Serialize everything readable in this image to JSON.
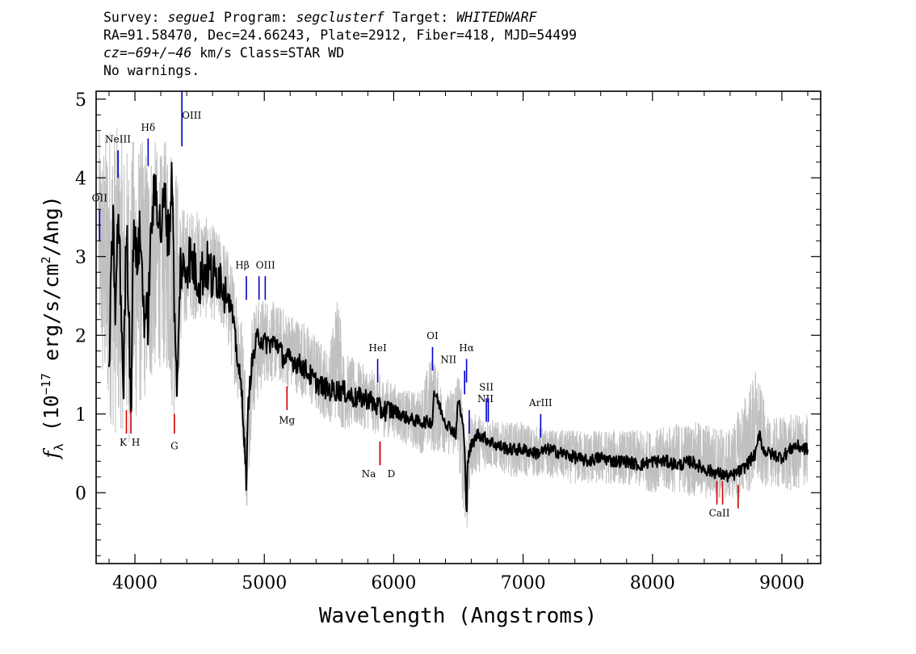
{
  "header": {
    "line1": {
      "survey_label": "Survey: ",
      "survey": "segue1",
      "program_label": " Program: ",
      "program": "segclusterf",
      "target_label": " Target: ",
      "target": "WHITEDWARF"
    },
    "line2": "RA=91.58470, Dec=24.66243, Plate=2912, Fiber=418, MJD=54499",
    "line3": {
      "cz": "cz=−69+/−46",
      "rest": " km/s Class=STAR WD"
    },
    "line4": "No warnings."
  },
  "colors": {
    "flux": "#000000",
    "error": "#c0c0c0",
    "emission": "#0000cc",
    "absorption": "#cc0000"
  },
  "chart_data": {
    "type": "line",
    "xlabel": "Wavelength (Angstroms)",
    "ylabel": "f_λ (10^-17 erg/s/cm^2/Ang)",
    "xlim": [
      3700,
      9300
    ],
    "ylim": [
      -0.9,
      5.1
    ],
    "x_ticks": [
      4000,
      5000,
      6000,
      7000,
      8000,
      9000
    ],
    "y_ticks": [
      0,
      1,
      2,
      3,
      4,
      5
    ],
    "grid": false,
    "series": [
      {
        "style": "smoothed flux (black)",
        "x": [
          3800,
          3830,
          3850,
          3870,
          3890,
          3910,
          3935,
          3950,
          3970,
          3990,
          4010,
          4040,
          4070,
          4100,
          4130,
          4160,
          4200,
          4230,
          4260,
          4290,
          4310,
          4330,
          4350,
          4380,
          4420,
          4500,
          4550,
          4600,
          4650,
          4700,
          4750,
          4800,
          4830,
          4850,
          4862,
          4875,
          4900,
          4950,
          5000,
          5050,
          5100,
          5150,
          5200,
          5300,
          5400,
          5500,
          5600,
          5700,
          5800,
          5900,
          6000,
          6100,
          6200,
          6300,
          6310,
          6400,
          6480,
          6500,
          6540,
          6555,
          6563,
          6570,
          6600,
          6650,
          6700,
          6800,
          6900,
          7000,
          7100,
          7200,
          7300,
          7400,
          7500,
          7600,
          7700,
          7800,
          7900,
          8000,
          8100,
          8200,
          8300,
          8400,
          8500,
          8600,
          8700,
          8800,
          8830,
          8850,
          8900,
          9000,
          9100,
          9200
        ],
        "y": [
          1.6,
          3.5,
          2.2,
          3.6,
          2.6,
          1.3,
          3.4,
          2.5,
          1.1,
          3.5,
          2.9,
          3.3,
          2.3,
          2.2,
          3.5,
          3.9,
          3.3,
          3.8,
          3.2,
          4.1,
          1.8,
          1.3,
          2.9,
          2.8,
          3.0,
          2.7,
          2.9,
          2.7,
          2.8,
          2.6,
          2.3,
          1.6,
          1.2,
          0.5,
          0.1,
          1.1,
          1.6,
          2.0,
          1.9,
          1.9,
          1.9,
          1.7,
          1.7,
          1.6,
          1.4,
          1.3,
          1.3,
          1.2,
          1.2,
          1.05,
          1.05,
          0.95,
          0.9,
          0.9,
          1.3,
          0.9,
          0.75,
          1.2,
          0.8,
          0.2,
          -0.25,
          0.4,
          0.6,
          0.75,
          0.7,
          0.6,
          0.55,
          0.55,
          0.5,
          0.55,
          0.5,
          0.45,
          0.4,
          0.45,
          0.4,
          0.4,
          0.35,
          0.4,
          0.4,
          0.35,
          0.4,
          0.3,
          0.25,
          0.2,
          0.3,
          0.5,
          0.8,
          0.55,
          0.5,
          0.45,
          0.6,
          0.55
        ]
      },
      {
        "style": "noisy error band (grey)",
        "x": [
          3720,
          3750,
          3800,
          3850,
          3900,
          3950,
          4000,
          4050,
          4100,
          4150,
          4200,
          4250,
          4300,
          4350,
          4400,
          4500,
          4600,
          4700,
          4800,
          4850,
          4862,
          4900,
          5000,
          5100,
          5200,
          5300,
          5400,
          5500,
          5580,
          5600,
          5700,
          5800,
          5900,
          6000,
          6100,
          6200,
          6300,
          6400,
          6500,
          6563,
          6600,
          6700,
          6800,
          6900,
          7000,
          7200,
          7400,
          7600,
          7800,
          8000,
          8200,
          8400,
          8600,
          8800,
          8900,
          9000,
          9100,
          9200
        ],
        "y_low": [
          2.0,
          1.2,
          0.9,
          0.7,
          0.8,
          0.6,
          0.8,
          1.1,
          1.2,
          1.5,
          1.6,
          1.5,
          0.9,
          1.6,
          2.2,
          2.2,
          2.2,
          2.0,
          1.1,
          0.3,
          -0.35,
          0.9,
          1.4,
          1.4,
          1.3,
          1.2,
          1.0,
          0.9,
          0.9,
          0.8,
          0.8,
          0.8,
          0.7,
          0.7,
          0.6,
          0.5,
          0.5,
          0.5,
          0.4,
          -0.65,
          0.2,
          0.3,
          0.3,
          0.2,
          0.2,
          0.2,
          0.1,
          0.1,
          0.1,
          0.0,
          0.0,
          -0.1,
          -0.1,
          0.0,
          0.1,
          0.0,
          0.0,
          0.1
        ],
        "y_high": [
          4.6,
          4.5,
          4.8,
          4.7,
          4.5,
          4.4,
          4.6,
          4.5,
          4.4,
          4.5,
          4.3,
          4.6,
          4.5,
          3.7,
          3.6,
          3.6,
          3.4,
          3.2,
          2.6,
          1.8,
          0.8,
          2.4,
          2.5,
          2.4,
          2.3,
          2.2,
          2.0,
          1.8,
          2.8,
          1.8,
          1.7,
          1.6,
          1.5,
          1.4,
          1.3,
          1.3,
          1.8,
          1.2,
          1.6,
          0.9,
          1.0,
          1.0,
          0.9,
          0.9,
          0.9,
          0.8,
          0.8,
          0.8,
          0.8,
          0.8,
          0.9,
          0.9,
          0.8,
          1.6,
          0.9,
          1.0,
          1.0,
          1.0
        ]
      }
    ],
    "line_labels": {
      "emission": [
        {
          "label": "OII",
          "x": 3727,
          "y0": 3.2,
          "y1": 3.6,
          "ly": 3.7
        },
        {
          "label": "NeIII",
          "x": 3869,
          "y0": 4.0,
          "y1": 4.35,
          "ly": 4.45
        },
        {
          "label": "Hδ",
          "x": 4102,
          "y0": 4.15,
          "y1": 4.5,
          "ly": 4.6
        },
        {
          "label": "OIII",
          "x": 4363,
          "y0": 4.4,
          "y1": 5.1,
          "ly": 4.75
        },
        {
          "label": "Hβ",
          "x": 4861,
          "y0": 2.45,
          "y1": 2.75,
          "ly": 2.85
        },
        {
          "label": "OIII",
          "x": 4959,
          "y0": 2.45,
          "y1": 2.75,
          "ly": 2.85
        },
        {
          "label": "OIII",
          "x": 5007,
          "y0": 2.45,
          "y1": 2.75,
          "ly": 2.85
        },
        {
          "label": "HeI",
          "x": 5876,
          "y0": 1.4,
          "y1": 1.7,
          "ly": 1.8
        },
        {
          "label": "OI",
          "x": 6300,
          "y0": 1.55,
          "y1": 1.85,
          "ly": 1.95
        },
        {
          "label": "NII",
          "x": 6548,
          "y0": 1.25,
          "y1": 1.55,
          "ly": 1.65
        },
        {
          "label": "Hα",
          "x": 6563,
          "y0": 1.4,
          "y1": 1.7,
          "ly": 1.8
        },
        {
          "label": "NII",
          "x": 6584,
          "y0": 0.75,
          "y1": 1.05,
          "ly": 1.15
        },
        {
          "label": "SII",
          "x": 6716,
          "y0": 0.9,
          "y1": 1.2,
          "ly": 1.3
        },
        {
          "label": "SII",
          "x": 6731,
          "y0": 0.9,
          "y1": 1.2,
          "ly": 1.3
        },
        {
          "label": "ArIII",
          "x": 7136,
          "y0": 0.7,
          "y1": 1.0,
          "ly": 1.1
        }
      ],
      "absorption": [
        {
          "label": "K",
          "x": 3934,
          "y0": 0.75,
          "y1": 1.05,
          "ly": 0.6
        },
        {
          "label": "H",
          "x": 3969,
          "y0": 0.75,
          "y1": 1.05,
          "ly": 0.6
        },
        {
          "label": "G",
          "x": 4305,
          "y0": 0.75,
          "y1": 1.0,
          "ly": 0.55
        },
        {
          "label": "Mg",
          "x": 5175,
          "y0": 1.05,
          "y1": 1.35,
          "ly": 0.88
        },
        {
          "label": "Na",
          "x": 5894,
          "y0": 0.35,
          "y1": 0.65,
          "ly": 0.2
        },
        {
          "label": "D",
          "x": 5894,
          "y0": 0.35,
          "y1": 0.65,
          "ly": 0.2
        },
        {
          "label": "CaII",
          "x": 8498,
          "y0": -0.15,
          "y1": 0.15,
          "ly": -0.3
        },
        {
          "label": "CaII",
          "x": 8542,
          "y0": -0.15,
          "y1": 0.15,
          "ly": -0.3
        },
        {
          "label": "CaII",
          "x": 8662,
          "y0": -0.2,
          "y1": 0.1,
          "ly": -0.3
        }
      ]
    }
  }
}
